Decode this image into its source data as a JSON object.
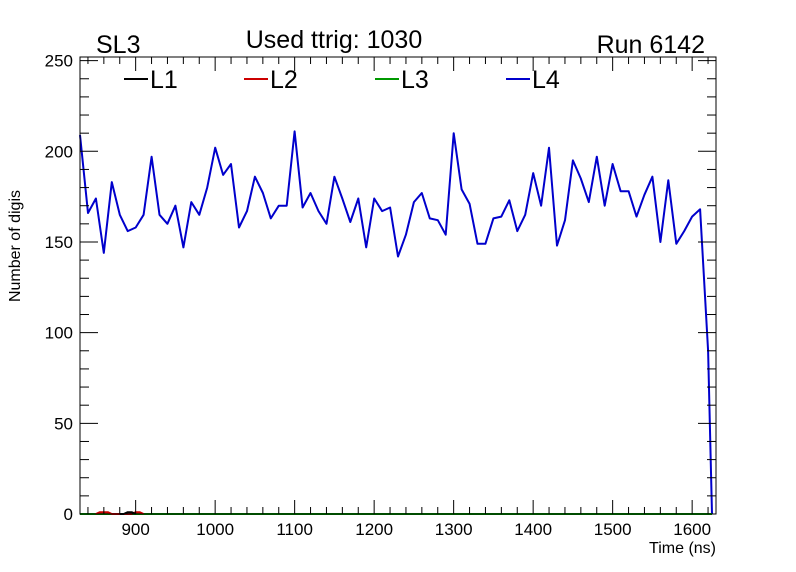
{
  "header": {
    "left": "SL3",
    "center": "Used ttrig: 1030",
    "right": "Run 6142"
  },
  "chart_data": {
    "type": "line",
    "xlabel": "Time (ns)",
    "ylabel": "Number of digis",
    "xlim": [
      830,
      1630
    ],
    "ylim": [
      0,
      252
    ],
    "x_ticks": [
      900,
      1000,
      1100,
      1200,
      1300,
      1400,
      1500,
      1600
    ],
    "y_ticks": [
      0,
      50,
      100,
      150,
      200,
      250
    ],
    "legend_placement": "top",
    "legend": [
      {
        "name": "L1",
        "color": "#000000"
      },
      {
        "name": "L2",
        "color": "#cc0000"
      },
      {
        "name": "L3",
        "color": "#009900"
      },
      {
        "name": "L4",
        "color": "#0000cc"
      }
    ],
    "series": [
      {
        "name": "L4",
        "color": "#0000cc",
        "x": [
          830,
          840,
          850,
          860,
          870,
          880,
          890,
          900,
          910,
          920,
          930,
          940,
          950,
          960,
          970,
          980,
          990,
          1000,
          1010,
          1020,
          1030,
          1040,
          1050,
          1060,
          1070,
          1080,
          1090,
          1100,
          1110,
          1120,
          1130,
          1140,
          1150,
          1160,
          1170,
          1180,
          1190,
          1200,
          1210,
          1220,
          1230,
          1240,
          1250,
          1260,
          1270,
          1280,
          1290,
          1300,
          1310,
          1320,
          1330,
          1340,
          1350,
          1360,
          1370,
          1380,
          1390,
          1400,
          1410,
          1420,
          1430,
          1440,
          1450,
          1460,
          1470,
          1480,
          1490,
          1500,
          1510,
          1520,
          1530,
          1540,
          1550,
          1560,
          1570,
          1580,
          1590,
          1600,
          1610,
          1620,
          1625
        ],
        "values": [
          209,
          166,
          174,
          144,
          183,
          165,
          156,
          158,
          165,
          197,
          165,
          160,
          170,
          147,
          172,
          165,
          180,
          202,
          187,
          193,
          158,
          167,
          186,
          177,
          163,
          170,
          170,
          211,
          169,
          177,
          167,
          160,
          186,
          174,
          161,
          174,
          147,
          174,
          167,
          169,
          142,
          154,
          172,
          177,
          163,
          162,
          154,
          210,
          179,
          171,
          149,
          149,
          163,
          164,
          173,
          156,
          165,
          188,
          170,
          202,
          148,
          162,
          195,
          185,
          172,
          197,
          170,
          193,
          178,
          178,
          164,
          176,
          186,
          150,
          184,
          149,
          156,
          164,
          168,
          90,
          0
        ]
      },
      {
        "name": "L3",
        "color": "#009900",
        "x": [
          830,
          1625
        ],
        "values": [
          0,
          0
        ]
      },
      {
        "name": "L2",
        "color": "#cc0000",
        "x": [
          850,
          855,
          860,
          865,
          870,
          895,
          900,
          905,
          910
        ],
        "values": [
          0,
          1,
          1,
          1,
          0,
          0,
          1,
          1,
          0
        ]
      },
      {
        "name": "L1",
        "color": "#000000",
        "x": [
          880,
          885,
          890,
          895,
          900
        ],
        "values": [
          0,
          0,
          1,
          1,
          0
        ]
      }
    ]
  }
}
